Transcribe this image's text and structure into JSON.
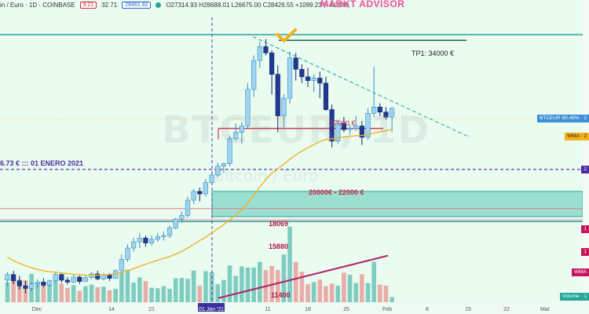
{
  "header": {
    "symbol": "in / Euro · 1D · COINBASE",
    "bid": "9.21",
    "spread": "32.71",
    "ask": "28461.92",
    "ohlc": "O27314.93 H28688.01 L26675.00 C28426.55 +1099.23 (+4.02%)"
  },
  "brand": "MARKT ADVISOR",
  "watermark": {
    "main": "BTCEUR, 1D",
    "sub": "Bitcoin / Euro"
  },
  "colors": {
    "background": "#eafbf0",
    "up_candle": "#9fd4ee",
    "down_candle": "#1f3a94",
    "wma": "#f0b429",
    "support_zone": "#58c9b5",
    "resistance_lines": "#26a69a",
    "trendline": "#26a69a",
    "red_level": "#d03a5a",
    "vol_trend": "#b0246a",
    "purple_level": "#5b3fb0",
    "checkmark": "#f3b21b"
  },
  "annotations": {
    "tp1": "TP1: 34000 €",
    "level_27000": "27000 €",
    "zone": "20000€ - 22000 €",
    "enero": "6.73 € ::: 01 ENERO 2021",
    "vol_18069": "18069",
    "vol_15880": "15880",
    "vol_11400": "11400"
  },
  "price_tags": {
    "btceur": "BTCEUR 80.46% · 2",
    "wma": "WMA · 2",
    "purple": "2",
    "vol_18069": "1",
    "vol_15880": "1",
    "wma_vol": "WMA",
    "volume": "Volume · 1"
  },
  "chart_data": {
    "type": "candlestick",
    "x_ticks": [
      "Dec",
      "14",
      "21",
      "01 Jan '21",
      "11",
      "18",
      "25",
      "Feb",
      "8",
      "15",
      "22",
      "Mar"
    ],
    "candles": [
      {
        "o": 14950,
        "h": 15600,
        "l": 14500,
        "c": 15400
      },
      {
        "o": 15400,
        "h": 15700,
        "l": 14650,
        "c": 14900
      },
      {
        "o": 14900,
        "h": 15300,
        "l": 14200,
        "c": 14500
      },
      {
        "o": 14500,
        "h": 14900,
        "l": 13900,
        "c": 14300
      },
      {
        "o": 14300,
        "h": 14750,
        "l": 14050,
        "c": 14650
      },
      {
        "o": 14650,
        "h": 15000,
        "l": 14400,
        "c": 14800
      },
      {
        "o": 14800,
        "h": 15100,
        "l": 14400,
        "c": 14550
      },
      {
        "o": 14550,
        "h": 15000,
        "l": 14450,
        "c": 14900
      },
      {
        "o": 14900,
        "h": 15600,
        "l": 14800,
        "c": 15400
      },
      {
        "o": 15400,
        "h": 15500,
        "l": 14750,
        "c": 14950
      },
      {
        "o": 14950,
        "h": 15200,
        "l": 14600,
        "c": 14800
      },
      {
        "o": 14800,
        "h": 15400,
        "l": 14700,
        "c": 15200
      },
      {
        "o": 15200,
        "h": 15300,
        "l": 14650,
        "c": 14850
      },
      {
        "o": 14850,
        "h": 15300,
        "l": 14800,
        "c": 15150
      },
      {
        "o": 15150,
        "h": 15600,
        "l": 15050,
        "c": 15450
      },
      {
        "o": 15450,
        "h": 15700,
        "l": 14950,
        "c": 15050
      },
      {
        "o": 15050,
        "h": 15500,
        "l": 14950,
        "c": 15350
      },
      {
        "o": 15350,
        "h": 15500,
        "l": 14900,
        "c": 15100
      },
      {
        "o": 15100,
        "h": 15800,
        "l": 15050,
        "c": 15700
      },
      {
        "o": 15700,
        "h": 17000,
        "l": 15500,
        "c": 16600
      },
      {
        "o": 16600,
        "h": 17800,
        "l": 16400,
        "c": 17500
      },
      {
        "o": 17500,
        "h": 18300,
        "l": 17200,
        "c": 18000
      },
      {
        "o": 18000,
        "h": 18700,
        "l": 17500,
        "c": 18300
      },
      {
        "o": 18300,
        "h": 18500,
        "l": 17600,
        "c": 17900
      },
      {
        "o": 17900,
        "h": 18500,
        "l": 17700,
        "c": 18200
      },
      {
        "o": 18200,
        "h": 18700,
        "l": 18000,
        "c": 18400
      },
      {
        "o": 18400,
        "h": 18800,
        "l": 18100,
        "c": 18500
      },
      {
        "o": 18500,
        "h": 19300,
        "l": 18300,
        "c": 19100
      },
      {
        "o": 19100,
        "h": 19900,
        "l": 19000,
        "c": 19800
      },
      {
        "o": 19800,
        "h": 20400,
        "l": 19500,
        "c": 20100
      },
      {
        "o": 20100,
        "h": 21600,
        "l": 19900,
        "c": 21300
      },
      {
        "o": 21300,
        "h": 22200,
        "l": 21000,
        "c": 22000
      },
      {
        "o": 22000,
        "h": 22300,
        "l": 21200,
        "c": 21800
      },
      {
        "o": 21800,
        "h": 23000,
        "l": 21600,
        "c": 22700
      },
      {
        "o": 22700,
        "h": 23400,
        "l": 22500,
        "c": 23300
      },
      {
        "o": 23300,
        "h": 24300,
        "l": 23100,
        "c": 24000
      },
      {
        "o": 24000,
        "h": 24300,
        "l": 23500,
        "c": 24200
      },
      {
        "o": 24200,
        "h": 26400,
        "l": 24000,
        "c": 26200
      },
      {
        "o": 26200,
        "h": 27400,
        "l": 26000,
        "c": 26700
      },
      {
        "o": 26700,
        "h": 27500,
        "l": 25800,
        "c": 27200
      },
      {
        "o": 27200,
        "h": 30600,
        "l": 27000,
        "c": 30100
      },
      {
        "o": 30100,
        "h": 32800,
        "l": 29500,
        "c": 32400
      },
      {
        "o": 32400,
        "h": 33900,
        "l": 31800,
        "c": 33500
      },
      {
        "o": 33500,
        "h": 34100,
        "l": 32800,
        "c": 33000
      },
      {
        "o": 33000,
        "h": 33200,
        "l": 29700,
        "c": 31300
      },
      {
        "o": 31300,
        "h": 32000,
        "l": 26700,
        "c": 28000
      },
      {
        "o": 28000,
        "h": 29700,
        "l": 27100,
        "c": 29400
      },
      {
        "o": 29400,
        "h": 33100,
        "l": 29000,
        "c": 32600
      },
      {
        "o": 32600,
        "h": 33000,
        "l": 30800,
        "c": 31700
      },
      {
        "o": 31700,
        "h": 32100,
        "l": 30600,
        "c": 31100
      },
      {
        "o": 31100,
        "h": 31800,
        "l": 30300,
        "c": 30800
      },
      {
        "o": 30800,
        "h": 31300,
        "l": 29900,
        "c": 31000
      },
      {
        "o": 31000,
        "h": 31500,
        "l": 29400,
        "c": 30600
      },
      {
        "o": 30600,
        "h": 31100,
        "l": 28400,
        "c": 28500
      },
      {
        "o": 28500,
        "h": 28900,
        "l": 25500,
        "c": 26000
      },
      {
        "o": 26000,
        "h": 27700,
        "l": 25800,
        "c": 27400
      },
      {
        "o": 27400,
        "h": 27900,
        "l": 26700,
        "c": 26900
      },
      {
        "o": 26900,
        "h": 27300,
        "l": 26500,
        "c": 27000
      },
      {
        "o": 27000,
        "h": 28000,
        "l": 26800,
        "c": 27200
      },
      {
        "o": 27200,
        "h": 27600,
        "l": 25700,
        "c": 26300
      },
      {
        "o": 26300,
        "h": 28600,
        "l": 26100,
        "c": 28200
      },
      {
        "o": 28200,
        "h": 31900,
        "l": 27900,
        "c": 28700
      },
      {
        "o": 28700,
        "h": 29000,
        "l": 28000,
        "c": 28300
      },
      {
        "o": 28300,
        "h": 28700,
        "l": 27700,
        "c": 27900
      },
      {
        "o": 27900,
        "h": 28700,
        "l": 26700,
        "c": 28600
      }
    ],
    "volume": [
      3800,
      4200,
      4400,
      4200,
      5500,
      3500,
      3300,
      3900,
      4200,
      3600,
      2800,
      3300,
      2200,
      3100,
      3400,
      2900,
      3000,
      2300,
      2600,
      5700,
      6300,
      3800,
      4800,
      4100,
      2800,
      2700,
      3100,
      2600,
      4600,
      4700,
      4500,
      6100,
      3200,
      6000,
      5800,
      3500,
      4300,
      7100,
      5100,
      6900,
      6700,
      6700,
      7800,
      6200,
      7000,
      6200,
      9200,
      14600,
      7800,
      5900,
      3500,
      3900,
      4400,
      3100,
      3600,
      3200,
      5700,
      5300,
      3700,
      5400,
      3700,
      7800,
      3400,
      3200,
      1000
    ],
    "wma": [
      16800,
      16500,
      16300,
      16100,
      15950,
      15800,
      15700,
      15620,
      15580,
      15520,
      15470,
      15420,
      15380,
      15350,
      15340,
      15350,
      15370,
      15400,
      15450,
      15560,
      15700,
      15870,
      16050,
      16220,
      16380,
      16530,
      16680,
      16830,
      17020,
      17230,
      17500,
      17800,
      18080,
      18380,
      18700,
      19040,
      19350,
      19750,
      20150,
      20550,
      21100,
      21700,
      22350,
      22950,
      23450,
      23800,
      24150,
      24550,
      24900,
      25200,
      25480,
      25720,
      25950,
      26120,
      26180,
      26260,
      26330,
      26380,
      26420,
      26440,
      26520,
      26640,
      26740,
      26820,
      26920
    ],
    "y_range": [
      13200,
      37200
    ],
    "volume_range": [
      0,
      20000
    ],
    "levels": {
      "tp1": 34000,
      "resistance_top": 34450,
      "level_27000": 27000,
      "enero": 23750,
      "zone": [
        20000,
        22000
      ],
      "support_low": 19600
    },
    "volume_levels": {
      "h18069": 18069,
      "h15880": 15880,
      "h11400": 11400
    }
  }
}
